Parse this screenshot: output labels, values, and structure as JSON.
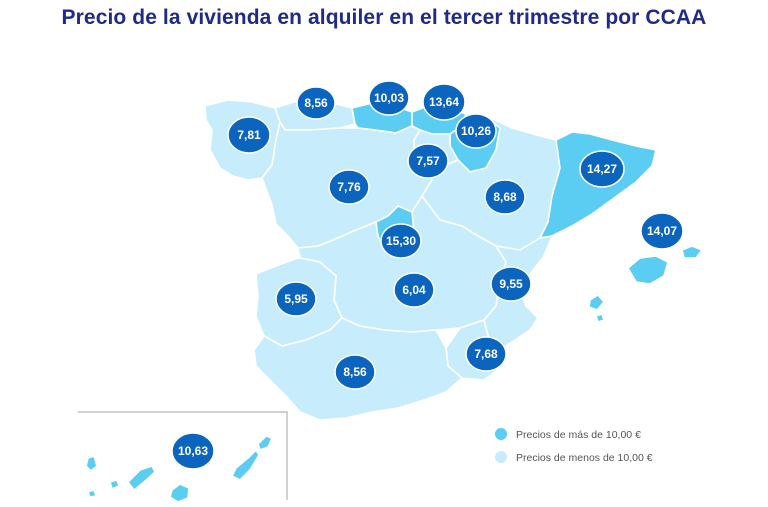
{
  "title": "Precio de la vivienda en alquiler en el tercer trimestre por CCAA",
  "colors": {
    "above": "#5ccdf2",
    "below": "#c7ecfb",
    "badge": "#0b64be",
    "title": "#1f2a8a"
  },
  "legend": {
    "above_label": "Precios de más de 10,00 €",
    "below_label": "Precios de menos de 10,00 €"
  },
  "regions": [
    {
      "id": "galicia",
      "value": "7,81",
      "above": false
    },
    {
      "id": "asturias",
      "value": "8,56",
      "above": false
    },
    {
      "id": "cantabria",
      "value": "10,03",
      "above": true
    },
    {
      "id": "pais-vasco",
      "value": "13,64",
      "above": true
    },
    {
      "id": "navarra",
      "value": "10,26",
      "above": true
    },
    {
      "id": "la-rioja",
      "value": "7,57",
      "above": false
    },
    {
      "id": "castilla-y-leon",
      "value": "7,76",
      "above": false
    },
    {
      "id": "aragon",
      "value": "8,68",
      "above": false
    },
    {
      "id": "cataluna",
      "value": "14,27",
      "above": true
    },
    {
      "id": "madrid",
      "value": "15,30",
      "above": true
    },
    {
      "id": "extremadura",
      "value": "5,95",
      "above": false
    },
    {
      "id": "castilla-la-mancha",
      "value": "6,04",
      "above": false
    },
    {
      "id": "comunidad-valenciana",
      "value": "9,55",
      "above": false
    },
    {
      "id": "murcia",
      "value": "7,68",
      "above": false
    },
    {
      "id": "andalucia",
      "value": "8,56",
      "above": false
    },
    {
      "id": "baleares",
      "value": "14,07",
      "above": true
    },
    {
      "id": "canarias",
      "value": "10,63",
      "above": true
    }
  ]
}
